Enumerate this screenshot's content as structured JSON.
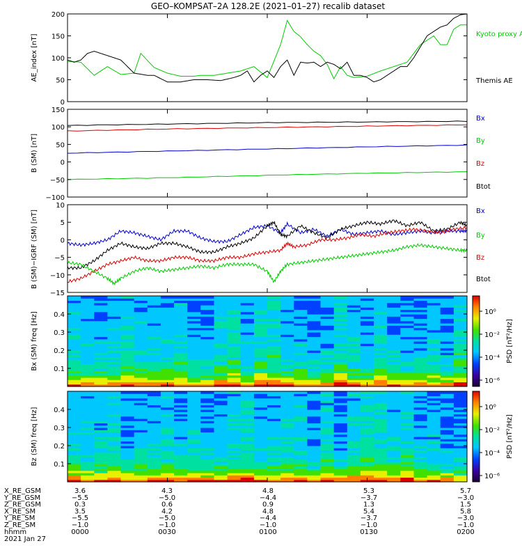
{
  "title": "GEO–KOMPSAT–2A 128.2E (2021–01–27) recalib dataset",
  "colors": {
    "black": "#000000",
    "green": "#00cc00",
    "red": "#dd0000",
    "blue": "#0000cc"
  },
  "chart_data": [
    {
      "type": "line",
      "ylabel": "AE_index [nT]",
      "ylim": [
        0,
        200
      ],
      "yticks": [
        "0",
        "50",
        "100",
        "150",
        "200"
      ],
      "xlim": [
        0,
        120
      ],
      "series": [
        {
          "name": "Kyoto proxy AE",
          "color": "green",
          "x": [
            0,
            4,
            8,
            12,
            16,
            20,
            22,
            26,
            30,
            34,
            38,
            40,
            44,
            48,
            52,
            56,
            60,
            64,
            66,
            68,
            70,
            72,
            74,
            76,
            78,
            80,
            82,
            84,
            86,
            90,
            94,
            98,
            102,
            106,
            110,
            112,
            114,
            116,
            118,
            120
          ],
          "y": [
            92,
            90,
            60,
            80,
            62,
            65,
            110,
            78,
            65,
            58,
            58,
            60,
            60,
            65,
            70,
            80,
            55,
            130,
            185,
            160,
            148,
            130,
            115,
            105,
            85,
            52,
            80,
            60,
            55,
            58,
            70,
            80,
            90,
            130,
            150,
            130,
            130,
            165,
            175,
            175
          ]
        },
        {
          "name": "Themis AE",
          "color": "black",
          "x": [
            0,
            2,
            4,
            6,
            8,
            10,
            12,
            16,
            20,
            24,
            26,
            30,
            34,
            38,
            42,
            46,
            50,
            52,
            54,
            56,
            58,
            60,
            62,
            64,
            66,
            68,
            70,
            72,
            74,
            76,
            78,
            80,
            82,
            84,
            86,
            88,
            90,
            92,
            94,
            96,
            98,
            100,
            102,
            104,
            106,
            108,
            110,
            112,
            114,
            116,
            118,
            120
          ],
          "y": [
            95,
            90,
            95,
            110,
            115,
            110,
            105,
            95,
            65,
            60,
            60,
            45,
            45,
            50,
            50,
            48,
            55,
            60,
            70,
            45,
            60,
            70,
            55,
            80,
            95,
            60,
            90,
            88,
            90,
            80,
            90,
            85,
            75,
            90,
            60,
            60,
            55,
            45,
            50,
            60,
            70,
            80,
            80,
            100,
            125,
            150,
            160,
            170,
            175,
            190,
            198,
            200
          ]
        }
      ]
    },
    {
      "type": "line",
      "ylabel": "B (SM) [nT]",
      "ylim": [
        -100,
        150
      ],
      "yticks": [
        "−100",
        "−50",
        "0",
        "50",
        "100",
        "150"
      ],
      "xlim": [
        0,
        120
      ],
      "series": [
        {
          "name": "Btot",
          "color": "black",
          "x": [
            0,
            30,
            60,
            90,
            120
          ],
          "y": [
            104,
            108,
            112,
            114,
            116
          ]
        },
        {
          "name": "Bz",
          "color": "red",
          "x": [
            0,
            30,
            60,
            90,
            120
          ],
          "y": [
            88,
            94,
            98,
            102,
            106
          ]
        },
        {
          "name": "By",
          "color": "blue",
          "x": [
            0,
            30,
            60,
            90,
            120
          ],
          "y": [
            25,
            31,
            37,
            43,
            48
          ]
        },
        {
          "name": "Bx",
          "color": "green",
          "x": [
            0,
            30,
            60,
            90,
            120
          ],
          "y": [
            -50,
            -45,
            -38,
            -32,
            -28
          ]
        }
      ]
    },
    {
      "type": "line",
      "ylabel": "B (SM)−IGRF (SM) [nT]",
      "ylim": [
        -15,
        10
      ],
      "yticks": [
        "−15",
        "−10",
        "−5",
        "0",
        "5",
        "10"
      ],
      "xlim": [
        0,
        120
      ],
      "series": [
        {
          "name": "Bx",
          "color": "blue",
          "x": [
            0,
            4,
            8,
            12,
            16,
            20,
            24,
            28,
            32,
            36,
            40,
            44,
            48,
            52,
            56,
            60,
            64,
            66,
            70,
            74,
            78,
            82,
            86,
            90,
            94,
            98,
            102,
            106,
            110,
            114,
            118,
            120
          ],
          "y": [
            -1,
            -1.5,
            -1,
            0,
            2.5,
            2,
            1,
            0,
            2.5,
            2.5,
            0.5,
            -0.5,
            -0.5,
            1.5,
            3.5,
            4,
            2,
            4.5,
            2,
            3,
            1,
            3,
            1.5,
            2,
            2.5,
            1.5,
            2,
            2.5,
            2,
            2.5,
            2.5,
            2.5
          ]
        },
        {
          "name": "By",
          "color": "black",
          "x": [
            0,
            4,
            8,
            12,
            16,
            20,
            24,
            28,
            32,
            36,
            40,
            44,
            48,
            52,
            56,
            60,
            62,
            64,
            66,
            70,
            74,
            78,
            82,
            86,
            90,
            94,
            98,
            102,
            106,
            110,
            114,
            118,
            120
          ],
          "y": [
            -8,
            -8,
            -6,
            -3,
            -1,
            -2,
            -2.5,
            -1,
            -1,
            -2,
            -3.5,
            -3.5,
            -2,
            -1,
            0.5,
            4,
            5,
            1.5,
            1,
            4,
            2,
            0.5,
            3,
            4,
            5,
            4.5,
            5.5,
            4,
            5,
            2.5,
            3,
            5,
            4
          ]
        },
        {
          "name": "Bz",
          "color": "red",
          "x": [
            0,
            4,
            8,
            12,
            16,
            20,
            24,
            28,
            32,
            36,
            40,
            44,
            48,
            52,
            56,
            60,
            64,
            66,
            68,
            72,
            76,
            80,
            84,
            88,
            92,
            96,
            100,
            104,
            108,
            112,
            116,
            120
          ],
          "y": [
            -12,
            -11,
            -9,
            -7,
            -6,
            -5,
            -6,
            -6,
            -5,
            -5,
            -6,
            -6,
            -5,
            -5,
            -4,
            -3.5,
            -3,
            -1,
            -2,
            -1.5,
            0,
            0,
            0.5,
            1.5,
            1,
            2,
            2.5,
            3,
            2.5,
            2,
            3,
            3.5
          ]
        },
        {
          "name": "Btot",
          "color": "green",
          "x": [
            0,
            4,
            8,
            12,
            14,
            16,
            20,
            24,
            28,
            32,
            36,
            40,
            44,
            48,
            52,
            56,
            60,
            62,
            64,
            66,
            70,
            74,
            78,
            82,
            86,
            90,
            94,
            98,
            102,
            106,
            110,
            114,
            118,
            120
          ],
          "y": [
            -6.5,
            -7,
            -9,
            -11,
            -12.5,
            -11,
            -9,
            -8,
            -9,
            -8.5,
            -8,
            -7.5,
            -8,
            -7,
            -7,
            -7,
            -9,
            -12,
            -9,
            -7,
            -6.5,
            -6,
            -5.5,
            -5,
            -4.5,
            -4,
            -3.5,
            -3,
            -2,
            -1.5,
            -2,
            -2.5,
            -3,
            -3
          ]
        }
      ]
    },
    {
      "type": "heatmap",
      "ylabel": "Bx (SM) freq [Hz]",
      "ylim": [
        0,
        0.5
      ],
      "yticks": [
        "0.1",
        "0.2",
        "0.3",
        "0.4"
      ],
      "xlim": [
        0,
        120
      ],
      "colorbar": {
        "label": "PSD [nT²/Hz]",
        "ticks": [
          "10⁰",
          "10⁻²",
          "10⁻⁴",
          "10⁻⁶"
        ]
      }
    },
    {
      "type": "heatmap",
      "ylabel": "Bz (SM) freq [Hz]",
      "ylim": [
        0,
        0.5
      ],
      "yticks": [
        "0.1",
        "0.2",
        "0.3",
        "0.4"
      ],
      "xlim": [
        0,
        120
      ],
      "colorbar": {
        "label": "PSD [nT²/Hz]",
        "ticks": [
          "10⁰",
          "10⁻²",
          "10⁻⁴",
          "10⁻⁶"
        ]
      }
    }
  ],
  "footer": {
    "row_labels": [
      "X_RE_GSM",
      "Y_RE_GSM",
      "Z_RE_GSM",
      "X_RE_SM",
      "Y_RE_SM",
      "Z_RE_SM",
      "hhmm"
    ],
    "columns": [
      [
        "3.6",
        "−5.5",
        "0.3",
        "3.5",
        "−5.5",
        "−1.0",
        "0000"
      ],
      [
        "4.3",
        "−5.0",
        "0.6",
        "4.2",
        "−5.0",
        "−1.0",
        "0030"
      ],
      [
        "4.8",
        "−4.4",
        "0.9",
        "4.8",
        "−4.4",
        "−1.0",
        "0100"
      ],
      [
        "5.3",
        "−3.7",
        "1.3",
        "5.4",
        "−3.7",
        "−1.0",
        "0130"
      ],
      [
        "5.7",
        "−3.0",
        "1.5",
        "5.8",
        "−3.0",
        "−1.0",
        "0200"
      ]
    ],
    "date": "2021 Jan 27"
  }
}
